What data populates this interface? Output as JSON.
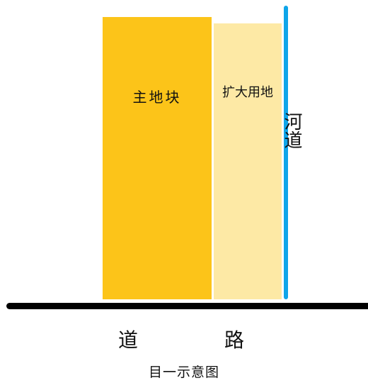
{
  "diagram": {
    "main_plot": {
      "label": "主地块",
      "color": "#fcc419"
    },
    "extension_plot": {
      "label": "扩大用地",
      "color": "#fde9a5"
    },
    "river": {
      "label": "河道",
      "color": "#0ea5e9"
    },
    "road": {
      "char_1": "道",
      "char_2": "路",
      "color": "#000000"
    },
    "caption": "目一示意图"
  }
}
